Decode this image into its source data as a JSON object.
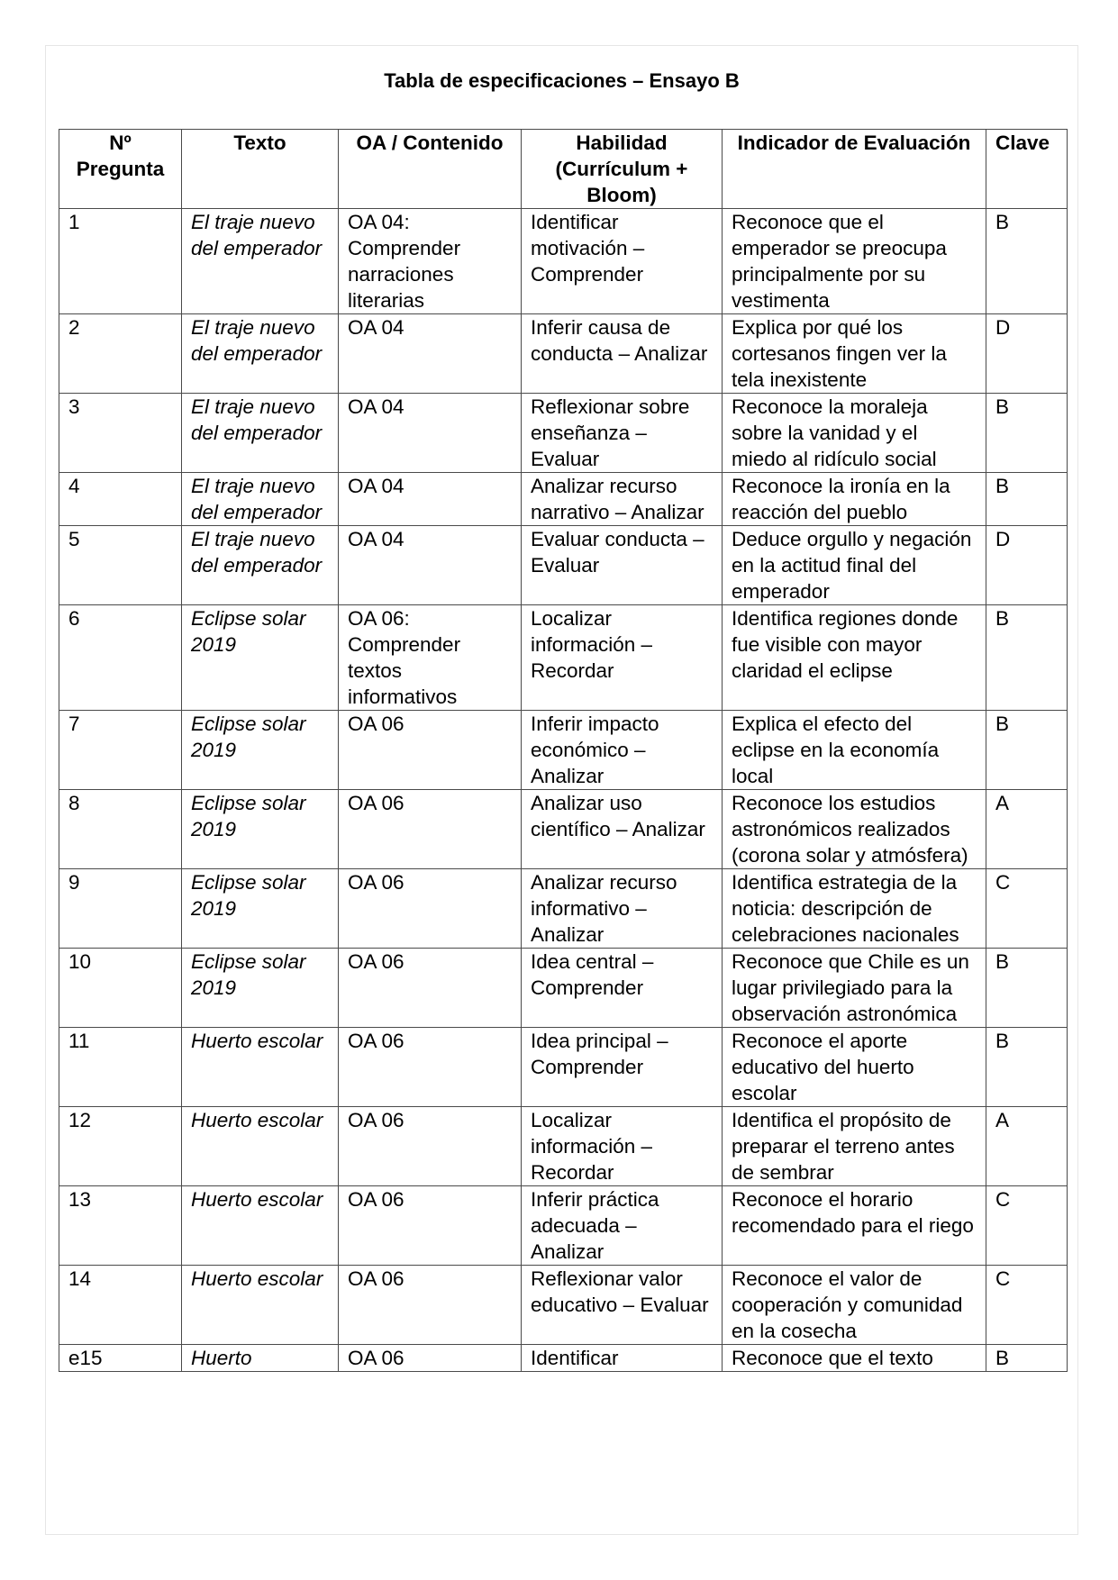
{
  "title": "Tabla de especificaciones – Ensayo B",
  "headers": [
    "Nº Pregunta",
    "Texto",
    "OA / Contenido",
    "Habilidad (Currículum + Bloom)",
    "Indicador de Evaluación",
    "Clave"
  ],
  "rows": [
    {
      "n": "1",
      "texto": "El traje nuevo del emperador",
      "oa": "OA 04: Comprender narraciones literarias",
      "habilidad": "Identificar motivación – Comprender",
      "indicador": "Reconoce que el emperador se preocupa principalmente por su vestimenta",
      "clave": "B"
    },
    {
      "n": "2",
      "texto": "El traje nuevo del emperador",
      "oa": "OA 04",
      "habilidad": "Inferir causa de conducta – Analizar",
      "indicador": "Explica por qué los cortesanos fingen ver la tela inexistente",
      "clave": "D"
    },
    {
      "n": "3",
      "texto": "El traje nuevo del emperador",
      "oa": "OA 04",
      "habilidad": "Reflexionar sobre enseñanza – Evaluar",
      "indicador": "Reconoce la moraleja sobre la vanidad y el miedo al ridículo social",
      "clave": "B"
    },
    {
      "n": "4",
      "texto": "El traje nuevo del emperador",
      "oa": "OA 04",
      "habilidad": "Analizar recurso narrativo – Analizar",
      "indicador": "Reconoce la ironía en la reacción del pueblo",
      "clave": "B"
    },
    {
      "n": "5",
      "texto": "El traje nuevo del emperador",
      "oa": "OA 04",
      "habilidad": "Evaluar conducta – Evaluar",
      "indicador": "Deduce orgullo y negación en la actitud final del emperador",
      "clave": "D"
    },
    {
      "n": "6",
      "texto": "Eclipse solar 2019",
      "oa": "OA 06: Comprender textos informativos",
      "habilidad": "Localizar información – Recordar",
      "indicador": "Identifica regiones donde fue visible con mayor claridad el eclipse",
      "clave": "B"
    },
    {
      "n": "7",
      "texto": "Eclipse solar 2019",
      "oa": "OA 06",
      "habilidad": "Inferir impacto económico – Analizar",
      "indicador": "Explica el efecto del eclipse en la economía local",
      "clave": "B"
    },
    {
      "n": "8",
      "texto": "Eclipse solar 2019",
      "oa": "OA 06",
      "habilidad": "Analizar uso científico – Analizar",
      "indicador": "Reconoce los estudios astronómicos realizados (corona solar y atmósfera)",
      "clave": "A"
    },
    {
      "n": "9",
      "texto": "Eclipse solar 2019",
      "oa": "OA 06",
      "habilidad": "Analizar recurso informativo – Analizar",
      "indicador": "Identifica estrategia de la noticia: descripción de celebraciones nacionales",
      "clave": "C"
    },
    {
      "n": "10",
      "texto": "Eclipse solar 2019",
      "oa": "OA 06",
      "habilidad": "Idea central – Comprender",
      "indicador": "Reconoce que Chile es un lugar privilegiado para la observación astronómica",
      "clave": "B"
    },
    {
      "n": "11",
      "texto": "Huerto escolar",
      "oa": "OA 06",
      "habilidad": "Idea principal – Comprender",
      "indicador": "Reconoce el aporte educativo del huerto escolar",
      "clave": "B"
    },
    {
      "n": "12",
      "texto": "Huerto escolar",
      "oa": "OA 06",
      "habilidad": "Localizar información – Recordar",
      "indicador": "Identifica el propósito de preparar el terreno antes de sembrar",
      "clave": "A"
    },
    {
      "n": "13",
      "texto": "Huerto escolar",
      "oa": "OA 06",
      "habilidad": "Inferir práctica adecuada – Analizar",
      "indicador": "Reconoce el horario recomendado para el riego",
      "clave": "C"
    },
    {
      "n": "14",
      "texto": "Huerto escolar",
      "oa": "OA 06",
      "habilidad": "Reflexionar valor educativo – Evaluar",
      "indicador": "Reconoce el valor de cooperación y comunidad en la cosecha",
      "clave": "C"
    },
    {
      "n": "e15",
      "texto": "Huerto",
      "oa": "OA 06",
      "habilidad": "Identificar",
      "indicador": "Reconoce que el texto",
      "clave": "B"
    }
  ]
}
